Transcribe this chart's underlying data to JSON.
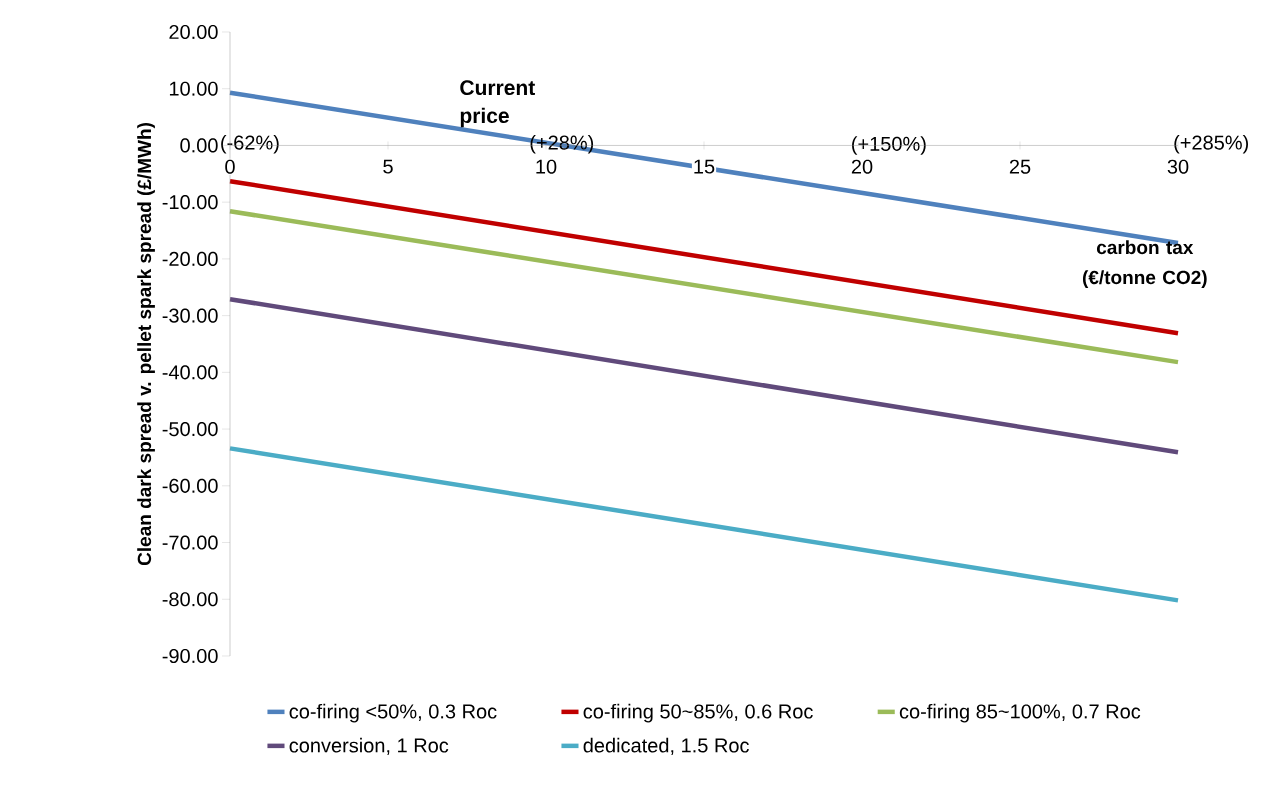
{
  "chart_data": {
    "type": "line",
    "xlabel": "carbon tax (€/tonne CO2)",
    "ylabel": "Clean dark spread v. pellet spark spread (£/MWh)",
    "x": [
      0,
      30
    ],
    "xlim": [
      0,
      30
    ],
    "xticks": [
      0,
      5,
      10,
      15,
      20,
      25,
      30
    ],
    "ylim": [
      -90,
      20
    ],
    "yticks": [
      {
        "value": 20,
        "label": "20.00"
      },
      {
        "value": 10,
        "label": "10.00"
      },
      {
        "value": 0,
        "label": "0.00"
      },
      {
        "value": -10,
        "label": "-10.00"
      },
      {
        "value": -20,
        "label": "-20.00"
      },
      {
        "value": -30,
        "label": "-30.00"
      },
      {
        "value": -40,
        "label": "-40.00"
      },
      {
        "value": -50,
        "label": "-50.00"
      },
      {
        "value": -60,
        "label": "-60.00"
      },
      {
        "value": -70,
        "label": "-70.00"
      },
      {
        "value": -80,
        "label": "-80.00"
      },
      {
        "value": -90,
        "label": "-90.00"
      }
    ],
    "series": [
      {
        "name": "co-firing <50%, 0.3 Roc",
        "color": "#4f81bd",
        "values": [
          9.3,
          -17.2
        ]
      },
      {
        "name": "co-firing 50~85%, 0.6 Roc",
        "color": "#c00000",
        "values": [
          -6.3,
          -33.1
        ]
      },
      {
        "name": "co-firing 85~100%, 0.7 Roc",
        "color": "#9bbb59",
        "values": [
          -11.6,
          -38.2
        ]
      },
      {
        "name": "conversion, 1 Roc",
        "color": "#604a7b",
        "values": [
          -27.1,
          -54.1
        ]
      },
      {
        "name": "dedicated, 1.5 Roc",
        "color": "#4bacc6",
        "values": [
          -53.4,
          -80.2
        ]
      }
    ],
    "annotations": [
      "Current price",
      "(-62%)",
      "(+28%)",
      "(+150%)",
      "(+285%)"
    ],
    "legend": "bottom",
    "grid": false,
    "marker": "none",
    "line_style": "solid"
  }
}
